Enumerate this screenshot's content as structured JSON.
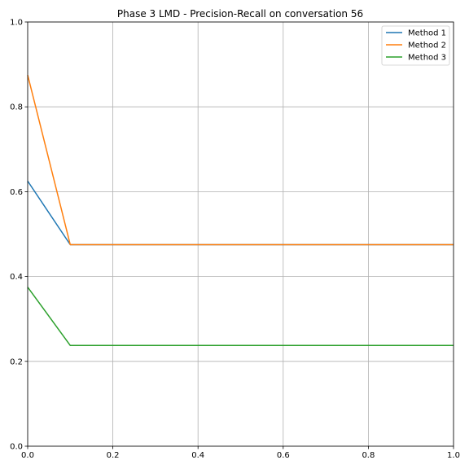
{
  "chart_data": {
    "type": "line",
    "title": "Phase 3 LMD - Precision-Recall on conversation 56",
    "xlabel": "",
    "ylabel": "",
    "xlim": [
      0,
      1
    ],
    "ylim": [
      0,
      1
    ],
    "xticks": [
      "0.0",
      "0.2",
      "0.4",
      "0.6",
      "0.8",
      "1.0"
    ],
    "yticks": [
      "0.0",
      "0.2",
      "0.4",
      "0.6",
      "0.8",
      "1.0"
    ],
    "grid": true,
    "legend_position": "top-right",
    "x": [
      0.0,
      0.1,
      0.2,
      0.3,
      0.4,
      0.5,
      0.6,
      0.7,
      0.8,
      0.9,
      1.0
    ],
    "series": [
      {
        "name": "Method 1",
        "color": "#1f77b4",
        "values": [
          0.625,
          0.475,
          0.475,
          0.475,
          0.475,
          0.475,
          0.475,
          0.475,
          0.475,
          0.475,
          0.475
        ]
      },
      {
        "name": "Method 2",
        "color": "#ff7f0e",
        "values": [
          0.875,
          0.475,
          0.475,
          0.475,
          0.475,
          0.475,
          0.475,
          0.475,
          0.475,
          0.475,
          0.475
        ]
      },
      {
        "name": "Method 3",
        "color": "#2ca02c",
        "values": [
          0.375,
          0.2375,
          0.2375,
          0.2375,
          0.2375,
          0.2375,
          0.2375,
          0.2375,
          0.2375,
          0.2375,
          0.2375
        ]
      }
    ]
  }
}
